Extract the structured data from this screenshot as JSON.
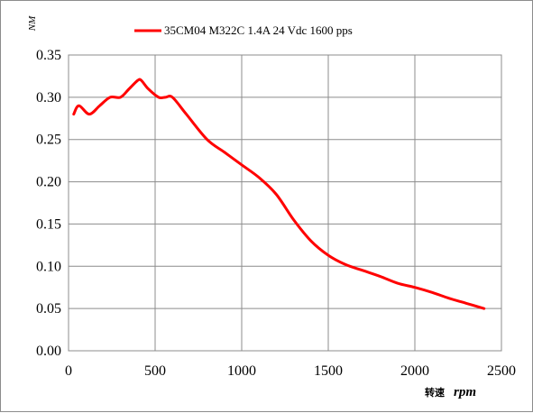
{
  "chart_data": {
    "type": "line",
    "ylabel": "NM",
    "xlabel_main": "转速",
    "xlabel_unit": "rpm",
    "xlim": [
      0,
      2500
    ],
    "ylim": [
      0.0,
      0.35
    ],
    "x_ticks": [
      "0",
      "500",
      "1000",
      "1500",
      "2000",
      "2500"
    ],
    "y_ticks": [
      "0.00",
      "0.05",
      "0.10",
      "0.15",
      "0.20",
      "0.25",
      "0.30",
      "0.35"
    ],
    "grid": true,
    "legend_position": "top-center",
    "series": [
      {
        "name": "35CM04 M322C 1.4A 24 Vdc  1600 pps",
        "color": "#ff0000",
        "x": [
          30,
          60,
          120,
          180,
          240,
          300,
          350,
          400,
          420,
          460,
          520,
          560,
          600,
          680,
          800,
          900,
          1000,
          1100,
          1200,
          1300,
          1400,
          1500,
          1600,
          1700,
          1800,
          1900,
          2000,
          2100,
          2200,
          2300,
          2400
        ],
        "y": [
          0.28,
          0.29,
          0.28,
          0.29,
          0.3,
          0.3,
          0.31,
          0.32,
          0.32,
          0.31,
          0.3,
          0.3,
          0.3,
          0.28,
          0.25,
          0.235,
          0.22,
          0.205,
          0.185,
          0.155,
          0.13,
          0.113,
          0.102,
          0.095,
          0.088,
          0.08,
          0.075,
          0.069,
          0.062,
          0.056,
          0.05
        ]
      }
    ]
  }
}
